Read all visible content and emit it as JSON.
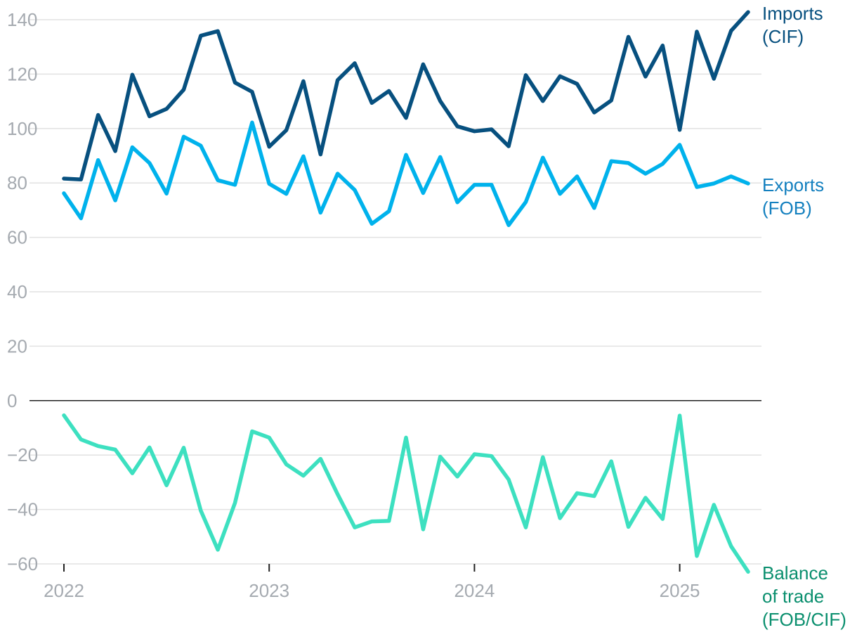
{
  "chart_data": {
    "type": "line",
    "title": "",
    "xlabel": "",
    "ylabel": "",
    "ylim": [
      -60,
      140
    ],
    "yticks": [
      -60,
      -40,
      -20,
      0,
      20,
      40,
      60,
      80,
      100,
      120,
      140
    ],
    "ytick_labels": [
      "−60",
      "−40",
      "−20",
      "0",
      "20",
      "40",
      "60",
      "80",
      "100",
      "120",
      "140"
    ],
    "x_start": "2022-01",
    "xticks": [
      "2022",
      "2023",
      "2024",
      "2025"
    ],
    "grid": true,
    "legend": "direct labels at right end of each line",
    "series": [
      {
        "name": "Imports (CIF)",
        "label_lines": [
          "Imports",
          "(CIF)"
        ],
        "color": "#07507f",
        "label_color": "#07507f",
        "values": [
          81.6,
          81.3,
          105,
          91.7,
          119.8,
          104.5,
          107.2,
          114.3,
          134.1,
          135.8,
          116.9,
          113.5,
          93.3,
          99.4,
          117.4,
          90.5,
          117.8,
          124,
          109.4,
          113.8,
          103.9,
          123.6,
          110.1,
          100.8,
          99,
          99.7,
          93.5,
          119.6,
          110.1,
          119.2,
          116.4,
          105.9,
          110.3,
          133.7,
          119.1,
          130.5,
          99.5,
          135.6,
          118.3,
          135.9,
          142.8
        ]
      },
      {
        "name": "Exports (FOB)",
        "label_lines": [
          "Exports",
          "(FOB)"
        ],
        "color": "#00b2ec",
        "label_color": "#1480bf",
        "values": [
          76.2,
          67,
          88.4,
          73.6,
          93.1,
          87.3,
          76.1,
          97,
          93.7,
          81,
          79.3,
          102.2,
          79.7,
          76,
          89.8,
          69.1,
          83.4,
          77.4,
          65,
          69.6,
          90.3,
          76.3,
          89.5,
          72.9,
          79.3,
          79.3,
          64.5,
          73,
          89.3,
          76,
          82.4,
          70.8,
          88,
          87.3,
          83.4,
          87,
          94,
          78.5,
          79.8,
          82.4,
          79.8
        ]
      },
      {
        "name": "Balance of trade (FOB/CIF)",
        "label_lines": [
          "Balance",
          "of trade",
          "(FOB/CIF)"
        ],
        "color": "#3de0c0",
        "label_color": "#0a8f6e",
        "values": [
          -5.4,
          -14.3,
          -16.7,
          -18,
          -26.7,
          -17.2,
          -31.1,
          -17.3,
          -40.4,
          -54.8,
          -37.6,
          -11.3,
          -13.6,
          -23.4,
          -27.6,
          -21.4,
          -34.4,
          -46.6,
          -44.4,
          -44.2,
          -13.6,
          -47.3,
          -20.6,
          -27.9,
          -19.7,
          -20.4,
          -29,
          -46.6,
          -20.8,
          -43.2,
          -34,
          -35.1,
          -22.3,
          -46.4,
          -35.7,
          -43.5,
          -5.5,
          -57.1,
          -38.3,
          -53.5,
          -62.9
        ]
      }
    ]
  }
}
